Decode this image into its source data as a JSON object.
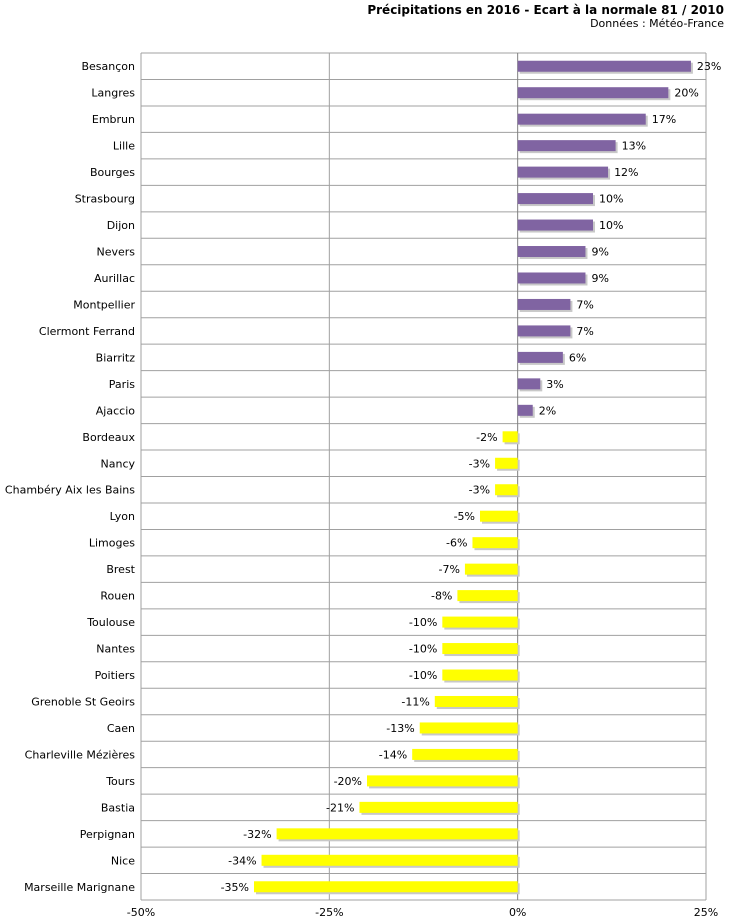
{
  "chart_data": {
    "type": "bar",
    "orientation": "horizontal",
    "title": "Précipitations en 2016 - Ecart à la normale 81 / 2010",
    "subtitle": "Données : Météo-France",
    "xlim": [
      -50,
      25
    ],
    "xticks": [
      -50,
      -25,
      0,
      25
    ],
    "xtick_labels": [
      "-50%",
      "-25%",
      "0%",
      "25%"
    ],
    "categories": [
      "Besançon",
      "Langres",
      "Embrun",
      "Lille",
      "Bourges",
      "Strasbourg",
      "Dijon",
      "Nevers",
      "Aurillac",
      "Montpellier",
      "Clermont Ferrand",
      "Biarritz",
      "Paris",
      "Ajaccio",
      "Bordeaux",
      "Nancy",
      "Chambéry Aix les Bains",
      "Lyon",
      "Limoges",
      "Brest",
      "Rouen",
      "Toulouse",
      "Nantes",
      "Poitiers",
      "Grenoble St Geoirs",
      "Caen",
      "Charleville Mézières",
      "Tours",
      "Bastia",
      "Perpignan",
      "Nice",
      "Marseille Marignane"
    ],
    "values": [
      23,
      20,
      17,
      13,
      12,
      10,
      10,
      9,
      9,
      7,
      7,
      6,
      3,
      2,
      -2,
      -3,
      -3,
      -5,
      -6,
      -7,
      -8,
      -10,
      -10,
      -10,
      -11,
      -13,
      -14,
      -20,
      -21,
      -32,
      -34,
      -35
    ],
    "value_labels": [
      "23%",
      "20%",
      "17%",
      "13%",
      "12%",
      "10%",
      "10%",
      "9%",
      "9%",
      "7%",
      "7%",
      "6%",
      "3%",
      "2%",
      "-2%",
      "-3%",
      "-3%",
      "-5%",
      "-6%",
      "-7%",
      "-8%",
      "-10%",
      "-10%",
      "-10%",
      "-11%",
      "-13%",
      "-14%",
      "-20%",
      "-21%",
      "-32%",
      "-34%",
      "-35%"
    ],
    "colors": {
      "positive": "#8064a2",
      "negative": "#ffff00",
      "grid": "#a0a0a0",
      "axis": "#808080"
    }
  }
}
